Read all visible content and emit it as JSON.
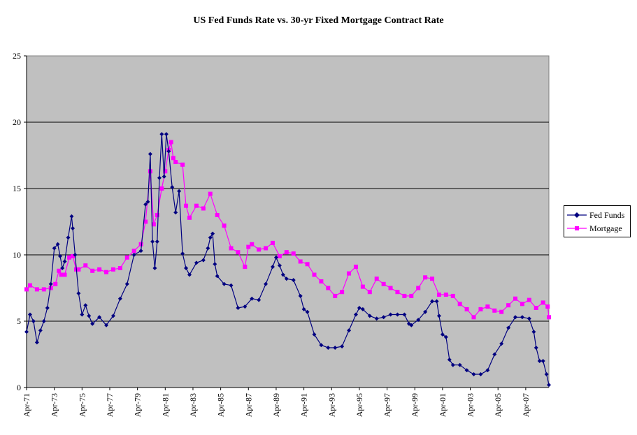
{
  "chart_data": {
    "type": "line",
    "title": "US Fed Funds Rate vs. 30-yr Fixed Mortgage Contract Rate",
    "xlabel": "",
    "ylabel": "",
    "ylim": [
      0,
      25
    ],
    "yticks": [
      "0",
      "5",
      "10",
      "15",
      "20",
      "25"
    ],
    "xlim": [
      1971.25,
      2008.92
    ],
    "xtick_labels": [
      "Apr-71",
      "Apr-73",
      "Apr-75",
      "Apr-77",
      "Apr-79",
      "Apr-81",
      "Apr-83",
      "Apr-85",
      "Apr-87",
      "Apr-89",
      "Apr-91",
      "Apr-93",
      "Apr-95",
      "Apr-97",
      "Apr-99",
      "Apr-01",
      "Apr-03",
      "Apr-05",
      "Apr-07"
    ],
    "xtick_values": [
      1971.25,
      1973.25,
      1975.25,
      1977.25,
      1979.25,
      1981.25,
      1983.25,
      1985.25,
      1987.25,
      1989.25,
      1991.25,
      1993.25,
      1995.25,
      1997.25,
      1999.25,
      2001.25,
      2003.25,
      2005.25,
      2007.25
    ],
    "grid": "horizontal",
    "plot_background": "#c0c0c0",
    "legend_position": "right",
    "series": [
      {
        "name": "Fed Funds",
        "color": "#000080",
        "marker": "diamond",
        "x": [
          1971.25,
          1971.5,
          1971.75,
          1972.0,
          1972.25,
          1972.5,
          1972.75,
          1973.0,
          1973.25,
          1973.5,
          1973.67,
          1973.83,
          1974.0,
          1974.25,
          1974.5,
          1974.58,
          1974.75,
          1975.0,
          1975.25,
          1975.5,
          1975.75,
          1976.0,
          1976.5,
          1977.0,
          1977.5,
          1978.0,
          1978.5,
          1979.0,
          1979.5,
          1979.83,
          1980.0,
          1980.17,
          1980.33,
          1980.5,
          1980.67,
          1980.83,
          1981.0,
          1981.17,
          1981.33,
          1981.5,
          1981.75,
          1982.0,
          1982.25,
          1982.5,
          1982.75,
          1983.0,
          1983.5,
          1984.0,
          1984.33,
          1984.5,
          1984.67,
          1984.83,
          1985.0,
          1985.5,
          1986.0,
          1986.5,
          1987.0,
          1987.5,
          1988.0,
          1988.5,
          1989.0,
          1989.25,
          1989.5,
          1989.75,
          1990.0,
          1990.5,
          1991.0,
          1991.25,
          1991.5,
          1992.0,
          1992.5,
          1993.0,
          1993.5,
          1994.0,
          1994.5,
          1995.0,
          1995.25,
          1995.5,
          1996.0,
          1996.5,
          1997.0,
          1997.5,
          1998.0,
          1998.5,
          1998.83,
          1999.0,
          1999.5,
          2000.0,
          2000.5,
          2000.83,
          2001.0,
          2001.25,
          2001.5,
          2001.75,
          2002.0,
          2002.5,
          2003.0,
          2003.5,
          2004.0,
          2004.5,
          2005.0,
          2005.5,
          2006.0,
          2006.5,
          2007.0,
          2007.5,
          2007.83,
          2008.0,
          2008.25,
          2008.5,
          2008.75,
          2008.92
        ],
        "y": [
          4.2,
          5.5,
          5.0,
          3.4,
          4.3,
          5.0,
          6.0,
          7.8,
          10.5,
          10.8,
          9.9,
          9.0,
          9.5,
          11.3,
          12.9,
          12.0,
          10.0,
          7.1,
          5.5,
          6.2,
          5.4,
          4.8,
          5.3,
          4.7,
          5.4,
          6.7,
          7.8,
          10.0,
          10.3,
          13.8,
          14.0,
          17.6,
          11.0,
          9.0,
          11.0,
          15.8,
          19.1,
          15.9,
          19.1,
          17.8,
          15.1,
          13.2,
          14.8,
          10.1,
          9.0,
          8.5,
          9.4,
          9.6,
          10.5,
          11.3,
          11.6,
          9.3,
          8.4,
          7.8,
          7.7,
          6.0,
          6.1,
          6.7,
          6.6,
          7.8,
          9.1,
          9.8,
          9.2,
          8.5,
          8.2,
          8.1,
          6.9,
          5.9,
          5.7,
          4.0,
          3.2,
          3.0,
          3.0,
          3.1,
          4.3,
          5.5,
          6.0,
          5.9,
          5.4,
          5.2,
          5.3,
          5.5,
          5.5,
          5.5,
          4.8,
          4.7,
          5.1,
          5.7,
          6.5,
          6.5,
          5.4,
          4.0,
          3.8,
          2.1,
          1.7,
          1.7,
          1.3,
          1.0,
          1.0,
          1.3,
          2.5,
          3.3,
          4.5,
          5.3,
          5.3,
          5.2,
          4.2,
          3.0,
          2.0,
          2.0,
          1.0,
          0.2
        ]
      },
      {
        "name": "Mortgage",
        "color": "#ff00ff",
        "marker": "square",
        "x": [
          1971.25,
          1971.5,
          1972.0,
          1972.5,
          1973.0,
          1973.33,
          1973.58,
          1973.75,
          1974.0,
          1974.33,
          1974.58,
          1974.83,
          1975.0,
          1975.5,
          1976.0,
          1976.5,
          1977.0,
          1977.5,
          1978.0,
          1978.5,
          1979.0,
          1979.5,
          1979.83,
          1980.17,
          1980.42,
          1980.67,
          1981.0,
          1981.25,
          1981.5,
          1981.67,
          1981.83,
          1982.0,
          1982.5,
          1982.75,
          1983.0,
          1983.5,
          1984.0,
          1984.5,
          1985.0,
          1985.5,
          1986.0,
          1986.5,
          1987.0,
          1987.25,
          1987.5,
          1988.0,
          1988.5,
          1989.0,
          1989.5,
          1990.0,
          1990.5,
          1991.0,
          1991.5,
          1992.0,
          1992.5,
          1993.0,
          1993.5,
          1994.0,
          1994.5,
          1995.0,
          1995.5,
          1996.0,
          1996.5,
          1997.0,
          1997.5,
          1998.0,
          1998.5,
          1999.0,
          1999.5,
          2000.0,
          2000.5,
          2001.0,
          2001.5,
          2002.0,
          2002.5,
          2003.0,
          2003.5,
          2004.0,
          2004.5,
          2005.0,
          2005.5,
          2006.0,
          2006.5,
          2007.0,
          2007.5,
          2008.0,
          2008.5,
          2008.83,
          2008.92
        ],
        "y": [
          7.4,
          7.7,
          7.4,
          7.4,
          7.5,
          7.8,
          8.8,
          8.5,
          8.5,
          9.8,
          9.9,
          8.9,
          8.9,
          9.2,
          8.8,
          8.9,
          8.7,
          8.9,
          9.0,
          9.8,
          10.3,
          10.8,
          12.5,
          16.3,
          12.3,
          13.0,
          15.0,
          16.3,
          17.9,
          18.5,
          17.3,
          17.0,
          16.8,
          13.7,
          12.8,
          13.7,
          13.5,
          14.6,
          13.0,
          12.2,
          10.5,
          10.2,
          9.1,
          10.6,
          10.8,
          10.4,
          10.5,
          10.9,
          9.9,
          10.2,
          10.1,
          9.5,
          9.3,
          8.5,
          8.0,
          7.5,
          6.9,
          7.2,
          8.6,
          9.1,
          7.6,
          7.2,
          8.2,
          7.8,
          7.5,
          7.2,
          6.9,
          6.9,
          7.5,
          8.3,
          8.2,
          7.0,
          7.0,
          6.9,
          6.3,
          5.9,
          5.3,
          5.9,
          6.1,
          5.8,
          5.7,
          6.2,
          6.7,
          6.3,
          6.6,
          6.0,
          6.4,
          6.1,
          5.3
        ]
      }
    ]
  }
}
